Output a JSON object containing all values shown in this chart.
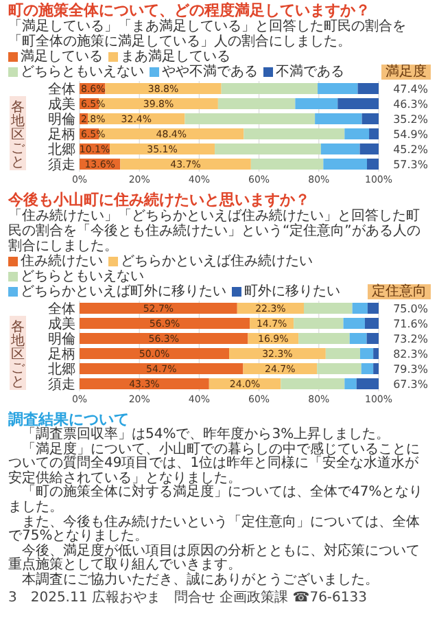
{
  "chart_data": [
    {
      "type": "bar",
      "orientation": "horizontal",
      "stacked": true,
      "title": "町の施策全体について、どの程度満足していますか？",
      "subtitle": "「満足している」「まあ満足している」と回答した町民の割合を「町全体の施策に満足している」人の割合にしました。",
      "categories": [
        "全体",
        "成美",
        "明倫",
        "足柄",
        "北郷",
        "須走"
      ],
      "series": [
        {
          "name": "満足している",
          "color": "#e8692a",
          "values": [
            8.6,
            6.5,
            2.8,
            6.5,
            10.1,
            13.6
          ],
          "value_labels": [
            "8.6%",
            "6.5%",
            "2.8%",
            "6.5%",
            "10.1%",
            "13.6%"
          ]
        },
        {
          "name": "まあ満足している",
          "color": "#f9c46b",
          "values": [
            38.8,
            39.8,
            32.4,
            48.4,
            35.1,
            43.7
          ],
          "value_labels": [
            "38.8%",
            "39.8%",
            "32.4%",
            "48.4%",
            "35.1%",
            "43.7%"
          ]
        },
        {
          "name": "どちらともいえない",
          "color": "#c5e0b4",
          "values": [
            32.2,
            25.8,
            43.5,
            33.7,
            35.5,
            24.2
          ]
        },
        {
          "name": "やや不満である",
          "color": "#5bb5ec",
          "values": [
            13.4,
            14.2,
            15.7,
            8.2,
            13.0,
            14.6
          ]
        },
        {
          "name": "不満である",
          "color": "#2f5fae",
          "values": [
            7.0,
            13.7,
            5.6,
            3.2,
            6.3,
            3.9
          ]
        }
      ],
      "xlim": [
        0,
        100
      ],
      "xticks": [
        {
          "value": 0,
          "label": "0%"
        },
        {
          "value": 20,
          "label": "20%"
        },
        {
          "value": 40,
          "label": "40%"
        },
        {
          "value": 60,
          "label": "60%"
        },
        {
          "value": 80,
          "label": "80%"
        },
        {
          "value": 100,
          "label": "100%"
        }
      ],
      "grid": "x",
      "legend": "top",
      "annotations": [
        "満足度",
        "47.4%",
        "46.3%",
        "35.2%",
        "54.9%",
        "45.2%",
        "57.3%",
        "各地区ごと"
      ]
    },
    {
      "type": "bar",
      "orientation": "horizontal",
      "stacked": true,
      "title": "今後も小山町に住み続けたいと思いますか？",
      "subtitle": "「住み続けたい」「どちらかといえば住み続けたい」と回答した町民の割合を「今後とも住み続けたい」という“定住意向”がある人の割合にしました。",
      "categories": [
        "全体",
        "成美",
        "明倫",
        "足柄",
        "北郷",
        "須走"
      ],
      "series": [
        {
          "name": "住み続けたい",
          "color": "#e8692a",
          "values": [
            52.7,
            56.9,
            56.3,
            50.0,
            54.7,
            43.3
          ],
          "value_labels": [
            "52.7%",
            "56.9%",
            "56.3%",
            "50.0%",
            "54.7%",
            "43.3%"
          ]
        },
        {
          "name": "どちらかといえば住み続けたい",
          "color": "#f9c46b",
          "values": [
            22.3,
            14.7,
            16.9,
            32.3,
            24.7,
            24.0
          ],
          "value_labels": [
            "22.3%",
            "14.7%",
            "16.9%",
            "32.3%",
            "24.7%",
            "24.0%"
          ]
        },
        {
          "name": "どちらともいえない",
          "color": "#c5e0b4",
          "values": [
            16.2,
            16.6,
            17.1,
            11.5,
            14.8,
            21.3
          ]
        },
        {
          "name": "どちらかといえば町外に移りたい",
          "color": "#5bb5ec",
          "values": [
            5.1,
            7.2,
            5.7,
            4.4,
            4.0,
            4.0
          ]
        },
        {
          "name": "町外に移りたい",
          "color": "#2f5fae",
          "values": [
            3.7,
            4.6,
            4.0,
            1.8,
            1.8,
            7.4
          ]
        }
      ],
      "xlim": [
        0,
        100
      ],
      "xticks": [
        {
          "value": 0,
          "label": "0%"
        },
        {
          "value": 20,
          "label": "20%"
        },
        {
          "value": 40,
          "label": "40%"
        },
        {
          "value": 60,
          "label": "60%"
        },
        {
          "value": 80,
          "label": "80%"
        },
        {
          "value": 100,
          "label": "100%"
        }
      ],
      "grid": "x",
      "legend": "top",
      "annotations": [
        "定住意向",
        "75.0%",
        "71.6%",
        "73.2%",
        "82.3%",
        "79.3%",
        "67.3%",
        "各地区ごと"
      ]
    },
    {
      "type": "other",
      "title": "調査結果について",
      "annotations": [
        "「調査票回収率」は54%で、昨年度から3%上昇しました。",
        "「満足度」について、小山町での暮らしの中で感じていることについての質問全49項目では、1位は昨年と同様に「安全な水道水が安定供給されている」となりました。",
        "「町の施策全体に対する満足度」については、全体で47%となりました。",
        "また、今後も住み続けたいという「定住意向」については、全体で75%となりました。",
        "今後、満足度が低い項目は原因の分析とともに、対応策について重点施策として取り組んでいきます。",
        "本調査にご協力いただき、誠にありがとうございました。",
        "3　2025.11 広報おやま　問合せ 企画政策課 ☎76-6133"
      ]
    }
  ]
}
